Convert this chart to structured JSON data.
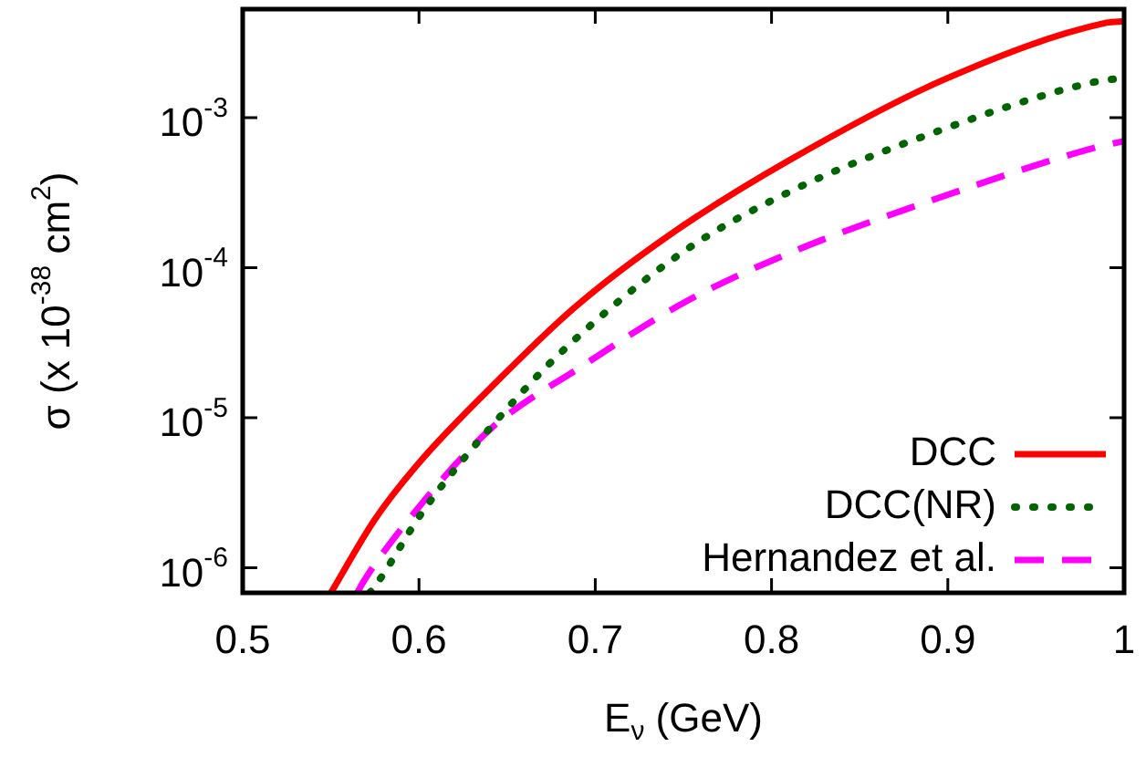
{
  "chart_data": {
    "type": "line",
    "xlabel": "E$_{ν}$ (GeV)",
    "ylabel": "σ (x 10$^{-38}$ cm$^{2}$)",
    "xlim": [
      0.5,
      1
    ],
    "ylim": [
      6.8e-07,
      0.0053
    ],
    "log": "y",
    "grid": false,
    "legend": "bottom right",
    "marker": "none",
    "xticks": [
      0.5,
      0.6,
      0.7,
      0.8,
      0.9,
      1
    ],
    "yticks": [
      {
        "value": 1e-06,
        "label": "10$^{-6}$"
      },
      {
        "value": 1e-05,
        "label": "10$^{-5}$"
      },
      {
        "value": 0.0001,
        "label": "10$^{-4}$"
      },
      {
        "value": 0.001,
        "label": "10$^{-3}$"
      }
    ],
    "series": [
      {
        "name": "DCC",
        "color": "#ff0000",
        "line_style": "solid",
        "x": [
          0.55,
          0.575,
          0.6,
          0.641,
          0.688,
          0.742,
          0.81,
          0.898,
          0.99,
          1.0
        ],
        "values": [
          6.8e-07,
          2.1e-06,
          5e-06,
          1.6e-05,
          5.4e-05,
          0.000165,
          0.00052,
          0.0018,
          0.0043,
          0.0044
        ]
      },
      {
        "name": "DCC(NR)",
        "color": "#006400",
        "line_style": "dotted",
        "x": [
          0.572,
          0.575,
          0.603,
          0.647,
          0.683,
          0.75,
          0.81,
          0.89,
          0.98,
          1.0
        ],
        "values": [
          6.8e-07,
          7.5e-07,
          2.45e-06,
          1.05e-05,
          2.9e-05,
          0.000128,
          0.00032,
          0.00078,
          0.0017,
          0.00185
        ]
      },
      {
        "name": "Hernandez et al.",
        "color": "#ff00ff",
        "line_style": "dashed",
        "x": [
          0.565,
          0.568,
          0.597,
          0.641,
          0.691,
          0.752,
          0.81,
          0.894,
          0.983,
          1.0
        ],
        "values": [
          6.8e-07,
          7.9e-07,
          2.3e-06,
          8.5e-06,
          2.15e-05,
          6e-05,
          0.000125,
          0.00029,
          0.00063,
          0.0007
        ]
      }
    ]
  }
}
